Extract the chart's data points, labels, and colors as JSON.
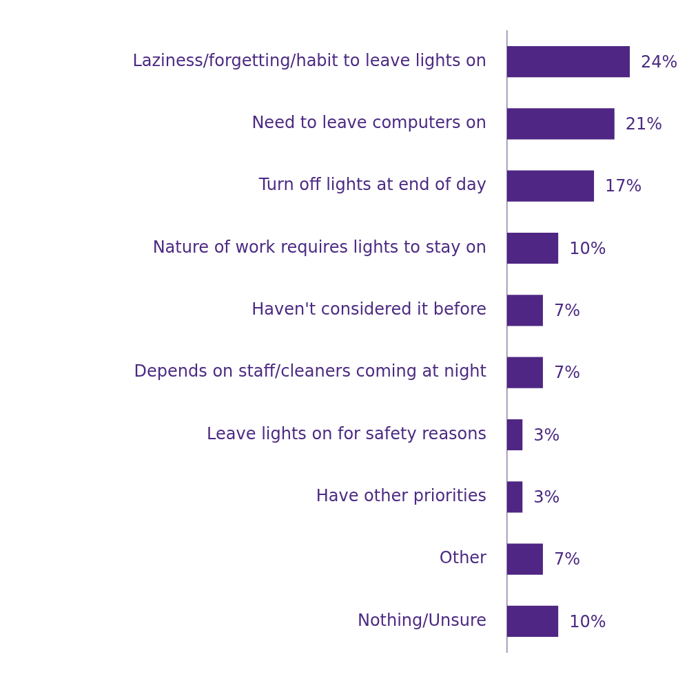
{
  "chart_data": {
    "type": "bar",
    "orientation": "horizontal",
    "categories": [
      "Laziness/forgetting/habit to leave lights on",
      "Need to leave computers on",
      "Turn off lights at end of day",
      "Nature of work requires lights to stay on",
      "Haven't considered it before",
      "Depends on staff/cleaners coming at night",
      "Leave lights on for safety reasons",
      "Have other priorities",
      "Other",
      "Nothing/Unsure"
    ],
    "values": [
      24,
      21,
      17,
      10,
      7,
      7,
      3,
      3,
      7,
      10
    ],
    "value_labels": [
      "24%",
      "21%",
      "17%",
      "10%",
      "7%",
      "7%",
      "3%",
      "3%",
      "7%",
      "10%"
    ],
    "color": "#4f2683"
  }
}
